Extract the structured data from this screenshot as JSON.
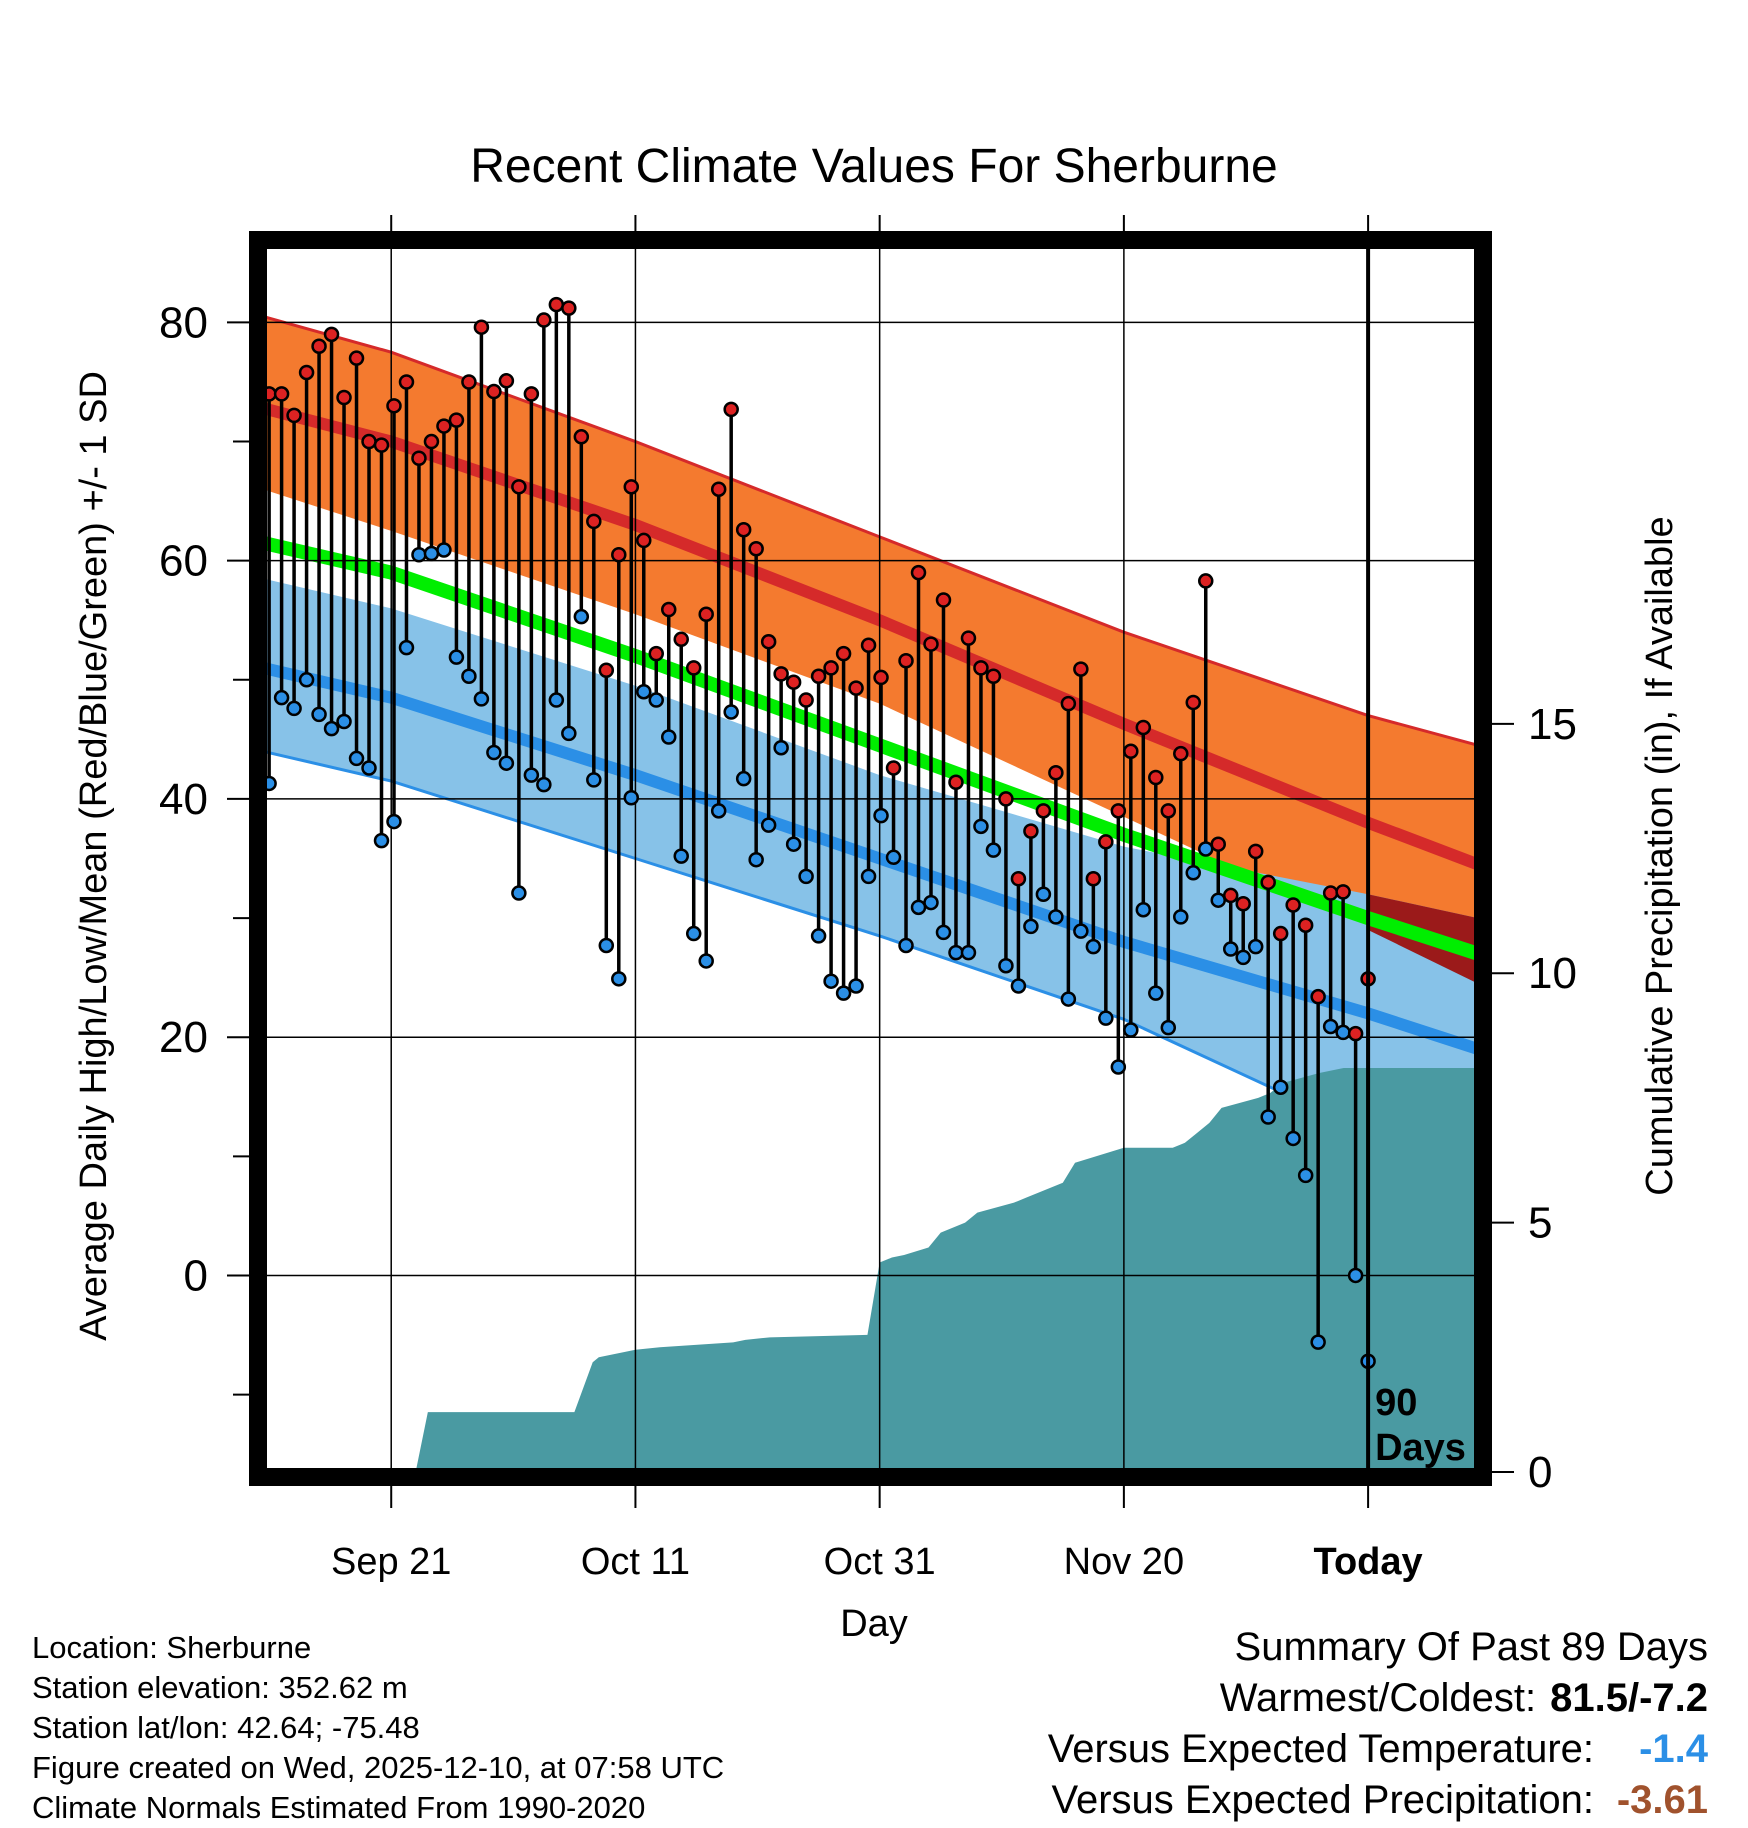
{
  "chart_data": {
    "type": "line",
    "title": "Recent Climate Values For Sherburne",
    "xlabel": "Day",
    "ylabel": "Average Daily High/Low/Mean (Red/Blue/Green) +/- 1 SD",
    "y2label": "Cumulative Precipitation (in), If Available",
    "ylim": [
      -16.5,
      86.5
    ],
    "y_ticks": [
      0,
      20,
      40,
      60,
      80
    ],
    "y2lim": [
      0,
      24.6
    ],
    "y2_ticks": [
      0,
      5,
      10,
      15
    ],
    "xlim": [
      -10.5,
      89
    ],
    "x_ticks": [
      {
        "day": 0,
        "label": "Sep 21"
      },
      {
        "day": 20,
        "label": "Oct 11"
      },
      {
        "day": 40,
        "label": "Oct 31"
      },
      {
        "day": 60,
        "label": "Nov 20"
      },
      {
        "day": 80,
        "label": "Today"
      }
    ],
    "today_label": "90 Days",
    "normals": {
      "days": [
        -10.5,
        0,
        20,
        40,
        60,
        80,
        89
      ],
      "high_mean": [
        72.8,
        70.0,
        63.0,
        55.0,
        46.3,
        38.0,
        34.5
      ],
      "high_upper": [
        80.5,
        77.5,
        70.0,
        62.0,
        54.0,
        47.0,
        44.5
      ],
      "high_lower": [
        66.0,
        62.5,
        55.5,
        48.0,
        38.5,
        29.0,
        24.5
      ],
      "mean": [
        61.5,
        59.0,
        52.0,
        44.5,
        37.0,
        30.0,
        27.0
      ],
      "low_mean": [
        51.0,
        48.5,
        42.0,
        35.0,
        28.0,
        22.0,
        19.0
      ],
      "low_upper": [
        58.5,
        56.0,
        49.5,
        42.0,
        36.0,
        32.0,
        30.0
      ],
      "low_lower": [
        44.0,
        41.5,
        35.0,
        28.5,
        21.5,
        12.0,
        8.0
      ]
    },
    "series": [
      {
        "name": "High",
        "color": "#dd2222",
        "values": [
          74,
          74,
          72.2,
          75.8,
          78,
          79,
          73.7,
          77,
          70,
          69.7,
          73,
          75,
          68.6,
          70,
          71.3,
          71.8,
          75,
          79.6,
          74.2,
          75.1,
          66.2,
          74,
          80.2,
          81.5,
          81.2,
          70.4,
          63.3,
          50.8,
          60.5,
          66.2,
          61.7,
          52.2,
          55.9,
          53.4,
          51,
          55.5,
          66,
          72.7,
          62.6,
          61,
          53.2,
          50.5,
          49.8,
          48.3,
          50.3,
          51,
          52.2,
          49.3,
          52.9,
          50.2,
          42.6,
          51.6,
          59,
          53,
          56.7,
          41.4,
          53.5,
          51,
          50.3,
          40,
          33.3,
          37.3,
          39,
          42.2,
          48,
          50.9,
          33.3,
          36.4,
          39,
          44,
          46,
          41.8,
          39,
          43.8,
          48.1,
          58.3,
          36.2,
          31.9,
          31.2,
          35.6,
          33,
          28.7,
          31.1,
          29.4,
          23.4,
          32.1,
          32.2,
          20.3,
          24.9
        ]
      },
      {
        "name": "Low",
        "color": "#2b8fe6",
        "values": [
          41.3,
          48.5,
          47.6,
          50,
          47.1,
          45.9,
          46.5,
          43.4,
          42.6,
          36.5,
          38.1,
          52.7,
          60.5,
          60.6,
          60.9,
          51.9,
          50.3,
          48.4,
          43.9,
          43.0,
          32.1,
          42,
          41.2,
          48.3,
          45.5,
          55.3,
          41.6,
          27.7,
          24.9,
          40.1,
          49,
          48.3,
          45.2,
          35.2,
          28.7,
          26.4,
          39,
          47.3,
          41.7,
          34.9,
          37.8,
          44.3,
          36.2,
          33.5,
          28.5,
          24.7,
          23.7,
          24.3,
          33.5,
          38.6,
          35.1,
          27.7,
          30.9,
          31.3,
          28.8,
          27.1,
          27.1,
          37.7,
          35.7,
          26.0,
          24.3,
          29.3,
          32.0,
          30.1,
          23.2,
          28.9,
          27.6,
          21.6,
          17.5,
          20.6,
          30.7,
          23.7,
          20.8,
          30.1,
          33.8,
          35.8,
          31.5,
          27.4,
          26.7,
          27.6,
          13.3,
          15.8,
          11.5,
          8.4,
          -5.6,
          20.9,
          20.4,
          0,
          -7.2
        ]
      }
    ],
    "precip": {
      "days": [
        -10.5,
        2,
        3,
        15,
        16.5,
        17,
        18,
        20,
        22,
        28,
        29,
        31,
        39,
        40,
        41,
        42,
        44,
        45,
        47,
        48,
        51,
        52,
        55,
        56,
        60,
        64,
        65,
        66,
        67,
        68,
        71,
        72,
        73,
        76,
        77,
        78,
        80,
        89
      ],
      "values": [
        0,
        0,
        1.2,
        1.2,
        2.2,
        2.3,
        2.35,
        2.45,
        2.5,
        2.6,
        2.65,
        2.7,
        2.75,
        4.2,
        4.3,
        4.35,
        4.5,
        4.8,
        5.0,
        5.2,
        5.4,
        5.5,
        5.8,
        6.2,
        6.5,
        6.5,
        6.6,
        6.8,
        7.0,
        7.3,
        7.5,
        7.6,
        7.8,
        8.0,
        8.05,
        8.1,
        8.1,
        8.1
      ]
    },
    "legend": "none"
  },
  "colors": {
    "high_band": "#f47a2f",
    "high_line": "#d52a2a",
    "mean_line": "#00ee00",
    "low_band": "#87c2e8",
    "low_line": "#2b8fe6",
    "precip_fill": "#4a9aa2",
    "overlap_band": "#9b1a1a"
  },
  "meta": [
    "Location: Sherburne",
    "Station elevation: 352.62 m",
    "Station lat/lon: 42.64; -75.48",
    "Figure created on Wed, 2025-12-10, at 07:58 UTC",
    "Climate Normals Estimated From 1990-2020"
  ],
  "summary": {
    "title": "Summary Of Past 89 Days",
    "warmest_label": "Warmest/Coldest:",
    "warmest_value": "81.5/-7.2",
    "temp_label": "Versus Expected Temperature:",
    "temp_value": "-1.4",
    "precip_label": "Versus Expected Precipitation:",
    "precip_value": "-3.61"
  }
}
